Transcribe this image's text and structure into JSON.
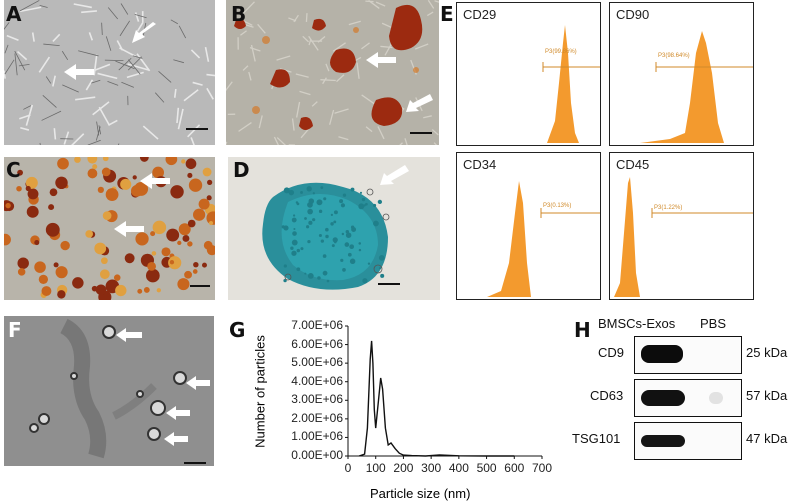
{
  "panels": {
    "A": "A",
    "B": "B",
    "C": "C",
    "D": "D",
    "E": "E",
    "F": "F",
    "G": "G",
    "H": "H"
  },
  "flow": [
    {
      "marker": "CD29",
      "gate": "P3(99.86%)",
      "gate_fraction": 0.9986
    },
    {
      "marker": "CD90",
      "gate": "P3(98.64%)",
      "gate_fraction": 0.9864
    },
    {
      "marker": "CD34",
      "gate": "P3(0.13%)",
      "gate_fraction": 0.0013
    },
    {
      "marker": "CD45",
      "gate": "P3(1.22%)",
      "gate_fraction": 0.0122
    }
  ],
  "nta_chart": {
    "ylabel": "Number of particles",
    "xlabel": "Particle size (nm)",
    "y_ticks": [
      "0.00E+00",
      "1.00E+06",
      "2.00E+06",
      "3.00E+06",
      "4.00E+06",
      "5.00E+06",
      "6.00E+06",
      "7.00E+06"
    ],
    "x_ticks": [
      "0",
      "100",
      "200",
      "300",
      "400",
      "500",
      "600",
      "700"
    ]
  },
  "chart_data": {
    "type": "line",
    "title": "",
    "xlabel": "Particle size (nm)",
    "ylabel": "Number of particles",
    "xlim": [
      0,
      700
    ],
    "ylim": [
      0,
      7000000
    ],
    "grid": false,
    "x": [
      40,
      60,
      70,
      80,
      85,
      90,
      95,
      100,
      110,
      118,
      125,
      135,
      145,
      155,
      170,
      185,
      200,
      230,
      280,
      330,
      400,
      500,
      600
    ],
    "series": [
      {
        "values": [
          0,
          100000,
          1500000,
          5200000,
          6200000,
          5000000,
          2500000,
          1500000,
          3000000,
          4200000,
          3600000,
          1500000,
          600000,
          700000,
          400000,
          150000,
          50000,
          20000,
          0,
          60000,
          10000,
          0,
          0
        ]
      }
    ]
  },
  "western_blot": {
    "columns": [
      "BMSCs-Exos",
      "PBS"
    ],
    "rows": [
      {
        "marker": "CD9",
        "size": "25 kDa"
      },
      {
        "marker": "CD63",
        "size": "57 kDa"
      },
      {
        "marker": "TSG101",
        "size": "47 kDa"
      }
    ]
  },
  "colors": {
    "flow_fill": "#f39a2e",
    "gate_line": "#d08a2a",
    "stain_red": "#9c2a10",
    "stain_blue": "#2a9aa6"
  }
}
